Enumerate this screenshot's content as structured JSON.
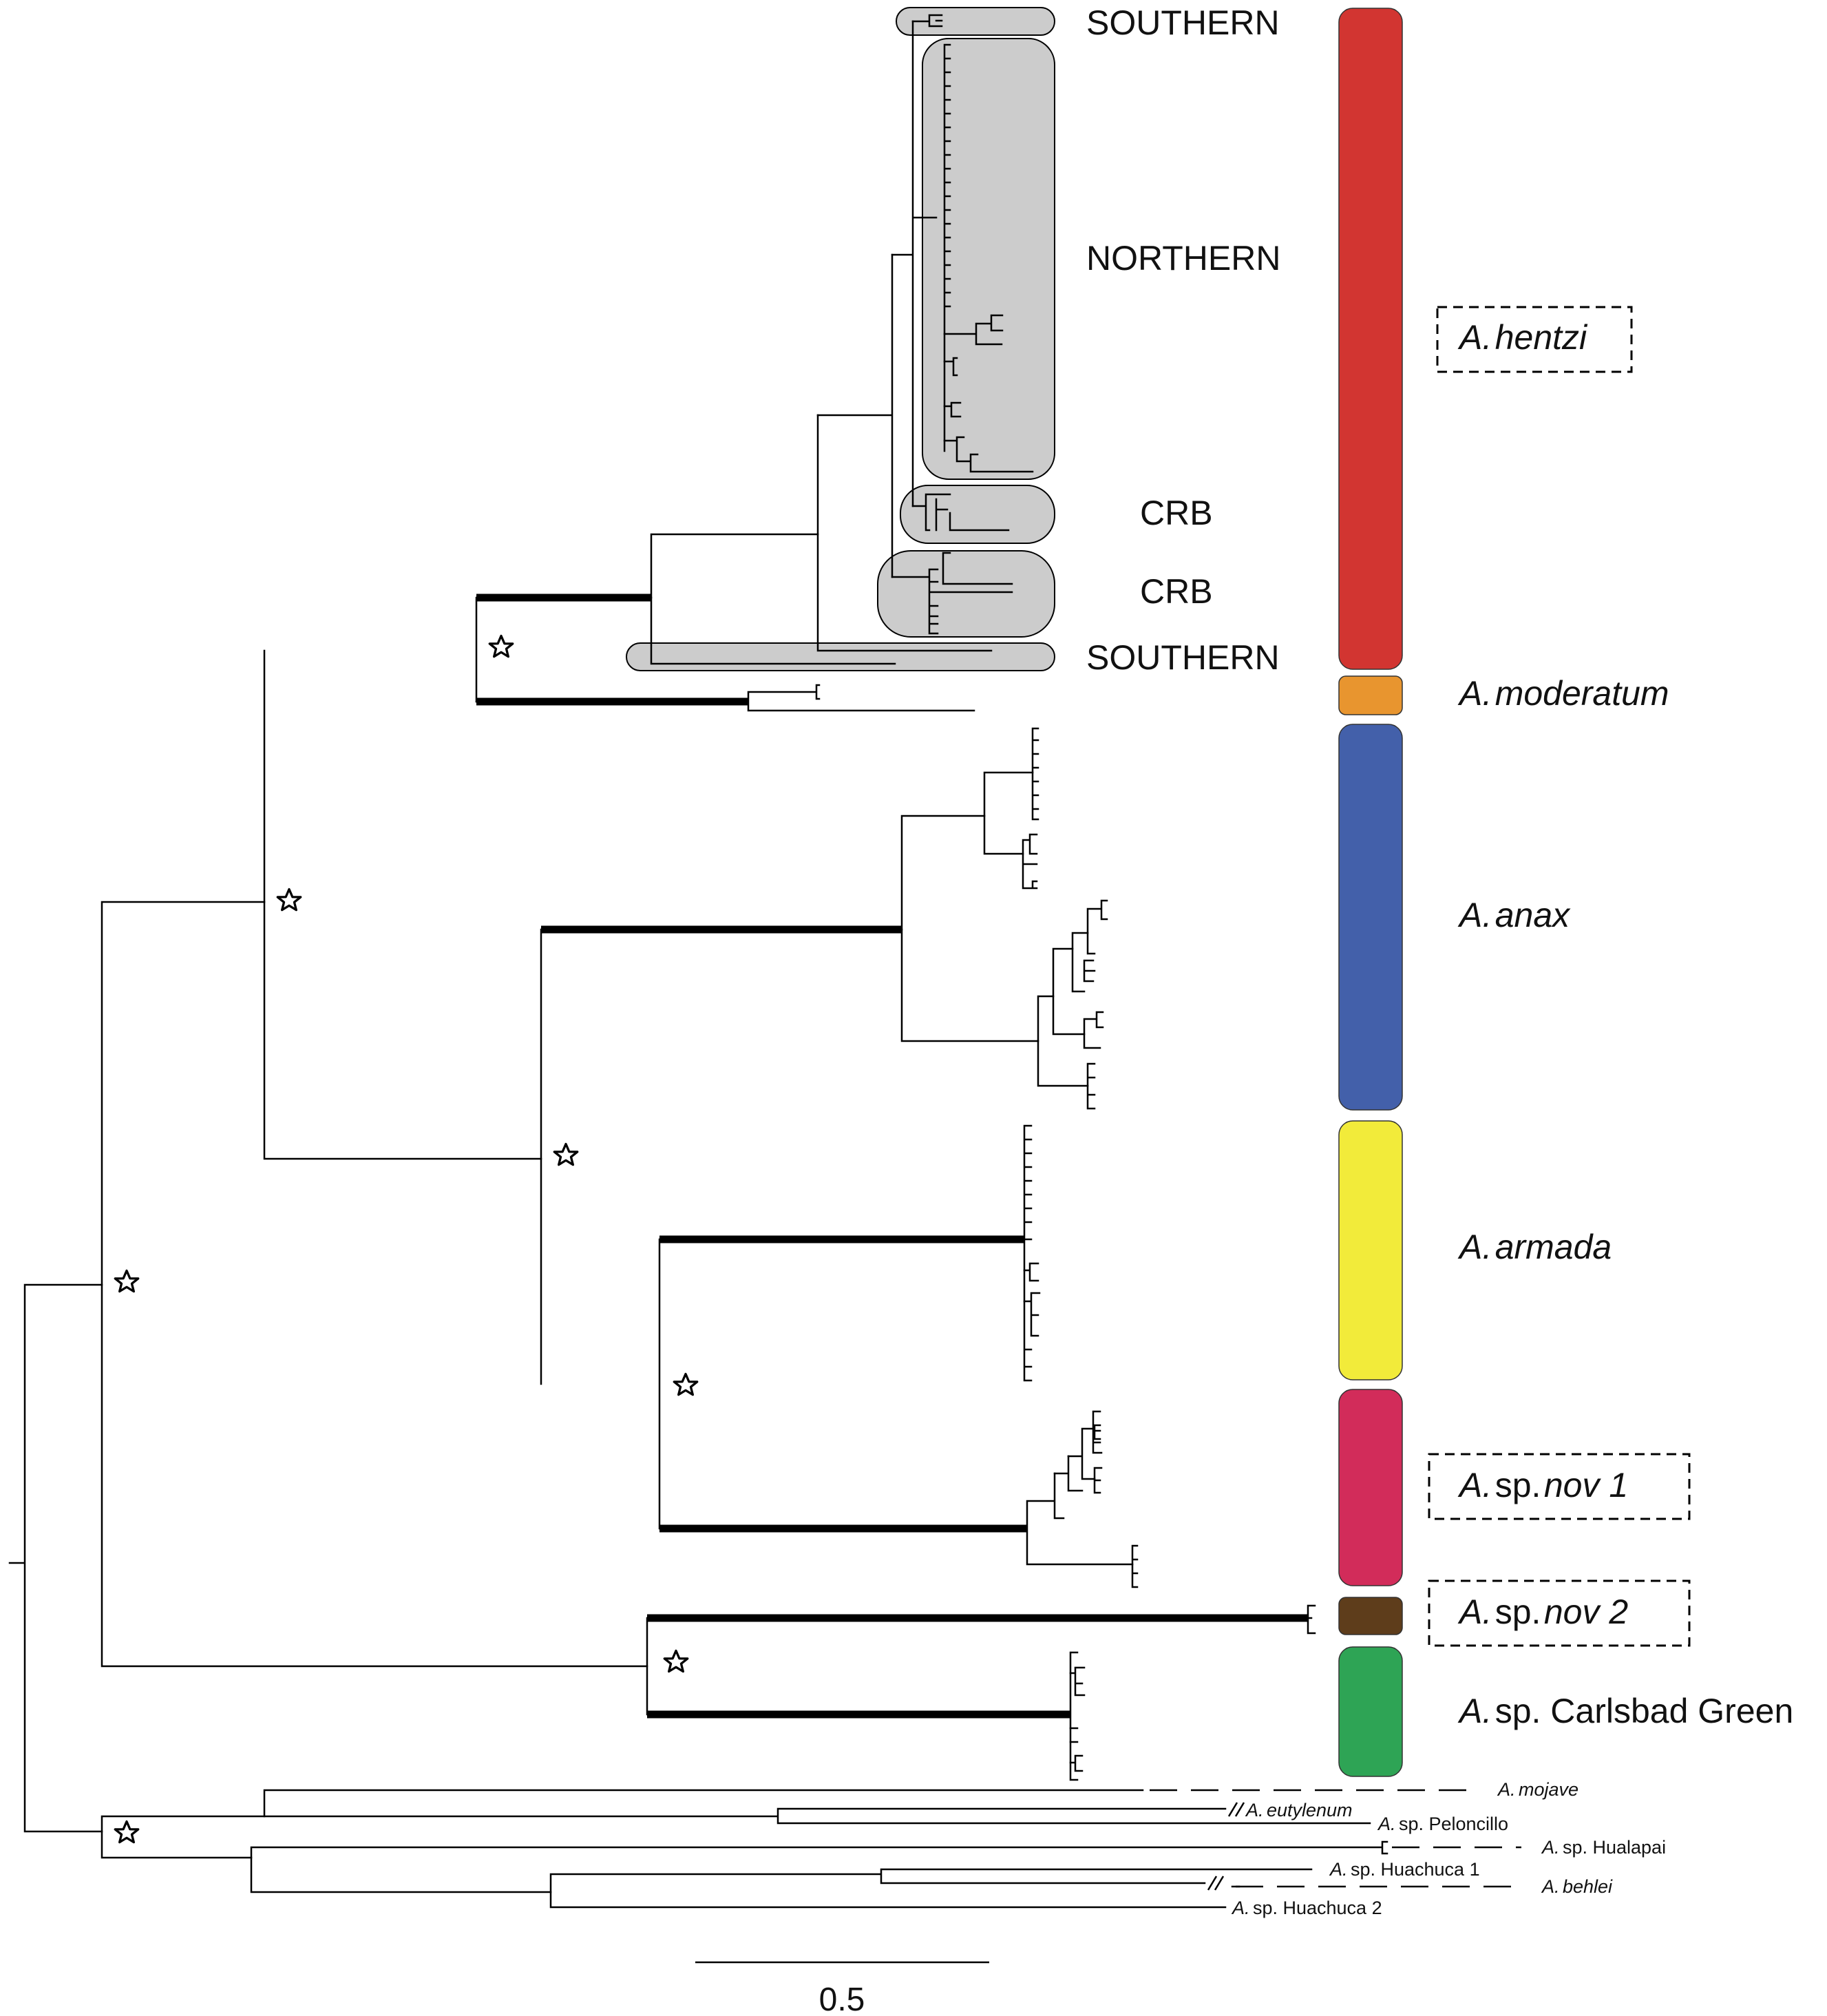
{
  "clade_labels": {
    "southern_top": "SOUTHERN",
    "northern": "NORTHERN",
    "crb_1": "CRB",
    "crb_2": "CRB",
    "southern_bottom": "SOUTHERN"
  },
  "species": [
    {
      "genus": "A.",
      "rest": "hentzi",
      "rest_italic": true,
      "boxed": true,
      "color": "#D23531"
    },
    {
      "genus": "A.",
      "rest": "moderatum",
      "rest_italic": true,
      "boxed": false,
      "color": "#E8952F"
    },
    {
      "genus": "A.",
      "rest": "anax",
      "rest_italic": true,
      "boxed": false,
      "color": "#4360AA"
    },
    {
      "genus": "A.",
      "rest": "armada",
      "rest_italic": true,
      "boxed": false,
      "color": "#F2EB3A"
    },
    {
      "genus": "A.",
      "rest": "sp.",
      "rest2": "nov 1",
      "boxed": true,
      "color": "#D22C5A"
    },
    {
      "genus": "A.",
      "rest": "sp.",
      "rest2": "nov 2",
      "boxed": true,
      "color": "#5E3D1B"
    },
    {
      "genus": "A.",
      "rest": "sp. Carlsbad Green",
      "rest_italic": false,
      "boxed": false,
      "color": "#2EA455"
    }
  ],
  "outgroups": [
    {
      "genus": "A.",
      "name": "mojave",
      "italic": true
    },
    {
      "genus": "A.",
      "name": "eutylenum",
      "italic": true
    },
    {
      "genus": "A.",
      "name": "sp. Peloncillo",
      "italic": false
    },
    {
      "genus": "A.",
      "name": "sp. Hualapai",
      "italic": false
    },
    {
      "genus": "A.",
      "name": "sp. Huachuca 1",
      "italic": false
    },
    {
      "genus": "A.",
      "name": "behlei",
      "italic": true
    },
    {
      "genus": "A.",
      "name": "sp. Huachuca 2",
      "italic": false
    }
  ],
  "scale_bar": {
    "label": "0.5",
    "value": 0.5
  },
  "icons": {
    "support_marker": "star-icon"
  }
}
